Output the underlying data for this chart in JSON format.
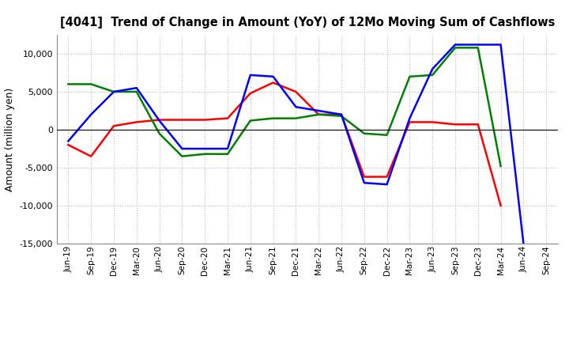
{
  "title": "[4041]  Trend of Change in Amount (YoY) of 12Mo Moving Sum of Cashflows",
  "ylabel": "Amount (million yen)",
  "x_labels": [
    "Jun-19",
    "Sep-19",
    "Dec-19",
    "Mar-20",
    "Jun-20",
    "Sep-20",
    "Dec-20",
    "Mar-21",
    "Jun-21",
    "Sep-21",
    "Dec-21",
    "Mar-22",
    "Jun-22",
    "Sep-22",
    "Dec-22",
    "Mar-23",
    "Jun-23",
    "Sep-23",
    "Dec-23",
    "Mar-24",
    "Jun-24",
    "Sep-24"
  ],
  "operating": [
    -2000,
    -3500,
    500,
    1000,
    1300,
    1300,
    1300,
    1500,
    4800,
    6200,
    5000,
    2000,
    2000,
    -6200,
    -6200,
    1000,
    1000,
    700,
    700,
    -10000,
    null,
    null
  ],
  "investing": [
    6000,
    6000,
    5000,
    5000,
    -500,
    -3500,
    -3200,
    -3200,
    1200,
    1500,
    1500,
    2000,
    1800,
    -500,
    -700,
    7000,
    7200,
    10800,
    10800,
    -4800,
    null,
    null
  ],
  "free": [
    -1500,
    2000,
    5000,
    5500,
    1200,
    -2500,
    -2500,
    -2500,
    7200,
    7000,
    3000,
    2500,
    2000,
    -7000,
    -7200,
    1500,
    8000,
    11200,
    11200,
    11200,
    -15000,
    null
  ],
  "ylim": [
    -15000,
    12500
  ],
  "yticks": [
    -15000,
    -10000,
    -5000,
    0,
    5000,
    10000
  ],
  "colors": {
    "operating": "#ff0000",
    "investing": "#008000",
    "free": "#0000ff"
  },
  "bg_color": "#ffffff",
  "plot_bg_color": "#ffffff",
  "grid_color": "#bbbbbb",
  "linewidth": 1.8
}
